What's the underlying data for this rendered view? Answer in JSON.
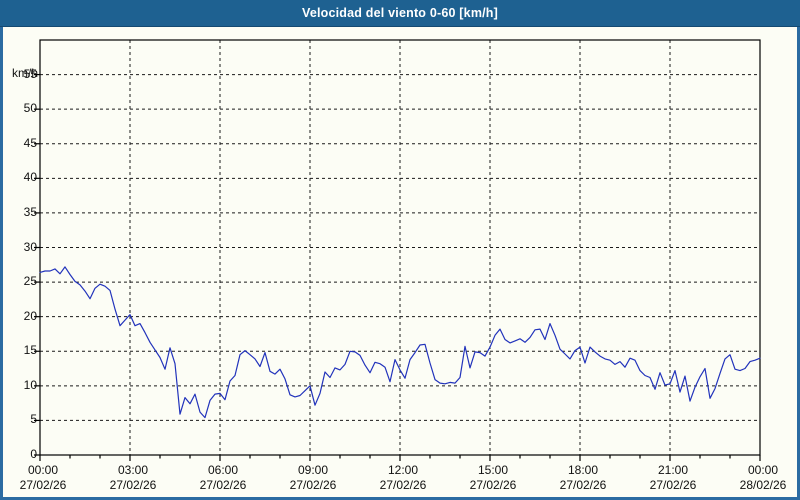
{
  "window": {
    "title": "Velocidad del viento 0-60 [km/h]"
  },
  "colors": {
    "titlebar_bg": "#1e6191",
    "window_border": "#2b6ba2",
    "background": "#fcfdf5",
    "grid": "#1a1a1a",
    "axis": "#000000",
    "line": "#2233bb",
    "title_text": "#ffffff",
    "label_text": "#111111"
  },
  "chart_data": {
    "type": "line",
    "title": "Velocidad del viento 0-60 [km/h]",
    "ylabel": "km/h",
    "xlabel": "",
    "ylim": [
      0,
      60
    ],
    "grid": "dashed",
    "legend": "none",
    "y_ticks": [
      0,
      5,
      10,
      15,
      20,
      25,
      30,
      35,
      40,
      45,
      50,
      55
    ],
    "x_ticks": [
      {
        "time": "00:00",
        "date": "27/02/26"
      },
      {
        "time": "03:00",
        "date": "27/02/26"
      },
      {
        "time": "06:00",
        "date": "27/02/26"
      },
      {
        "time": "09:00",
        "date": "27/02/26"
      },
      {
        "time": "12:00",
        "date": "27/02/26"
      },
      {
        "time": "15:00",
        "date": "27/02/26"
      },
      {
        "time": "18:00",
        "date": "27/02/26"
      },
      {
        "time": "21:00",
        "date": "27/02/26"
      },
      {
        "time": "00:00",
        "date": "28/02/26"
      }
    ],
    "x_minor_tick_interval_hours": 1,
    "x_major_tick_interval_hours": 3,
    "series": [
      {
        "name": "Velocidad del viento",
        "unit": "km/h",
        "color": "#2233bb",
        "start": "27/02/26 00:00",
        "end": "28/02/26 00:00",
        "interval_minutes": 10,
        "values": [
          26.4,
          26.6,
          26.6,
          26.9,
          26.2,
          27.2,
          26.1,
          25.1,
          24.6,
          23.7,
          22.6,
          24.1,
          24.7,
          24.4,
          23.8,
          21.1,
          18.7,
          19.5,
          20.3,
          18.7,
          19.0,
          17.7,
          16.3,
          15.2,
          14.1,
          12.4,
          15.5,
          13.2,
          5.9,
          8.3,
          7.4,
          8.8,
          6.2,
          5.4,
          7.9,
          8.8,
          8.9,
          8.0,
          10.7,
          11.5,
          14.5,
          15.1,
          14.5,
          13.9,
          12.8,
          14.8,
          12.1,
          11.7,
          12.4,
          11.0,
          8.7,
          8.4,
          8.6,
          9.3,
          10.0,
          7.2,
          8.9,
          12.0,
          11.2,
          12.6,
          12.3,
          13.1,
          15.0,
          14.9,
          14.4,
          13.0,
          11.9,
          13.4,
          13.2,
          12.7,
          10.6,
          13.8,
          12.3,
          11.1,
          13.8,
          14.8,
          15.9,
          16.0,
          13.3,
          10.9,
          10.4,
          10.3,
          10.5,
          10.4,
          11.2,
          15.7,
          12.6,
          14.9,
          14.8,
          14.3,
          15.6,
          17.3,
          18.2,
          16.7,
          16.2,
          16.5,
          16.8,
          16.3,
          17.0,
          18.1,
          18.2,
          16.7,
          19.0,
          17.3,
          15.3,
          14.6,
          13.9,
          15.1,
          15.6,
          13.3,
          15.6,
          14.9,
          14.3,
          13.9,
          13.7,
          13.1,
          13.5,
          12.7,
          14.0,
          13.7,
          12.2,
          11.5,
          11.2,
          9.5,
          11.9,
          10.1,
          10.3,
          12.2,
          9.1,
          11.4,
          7.8,
          9.8,
          11.3,
          12.5,
          8.2,
          9.6,
          11.8,
          13.9,
          14.5,
          12.4,
          12.2,
          12.5,
          13.5,
          13.7,
          14.0
        ]
      }
    ]
  }
}
